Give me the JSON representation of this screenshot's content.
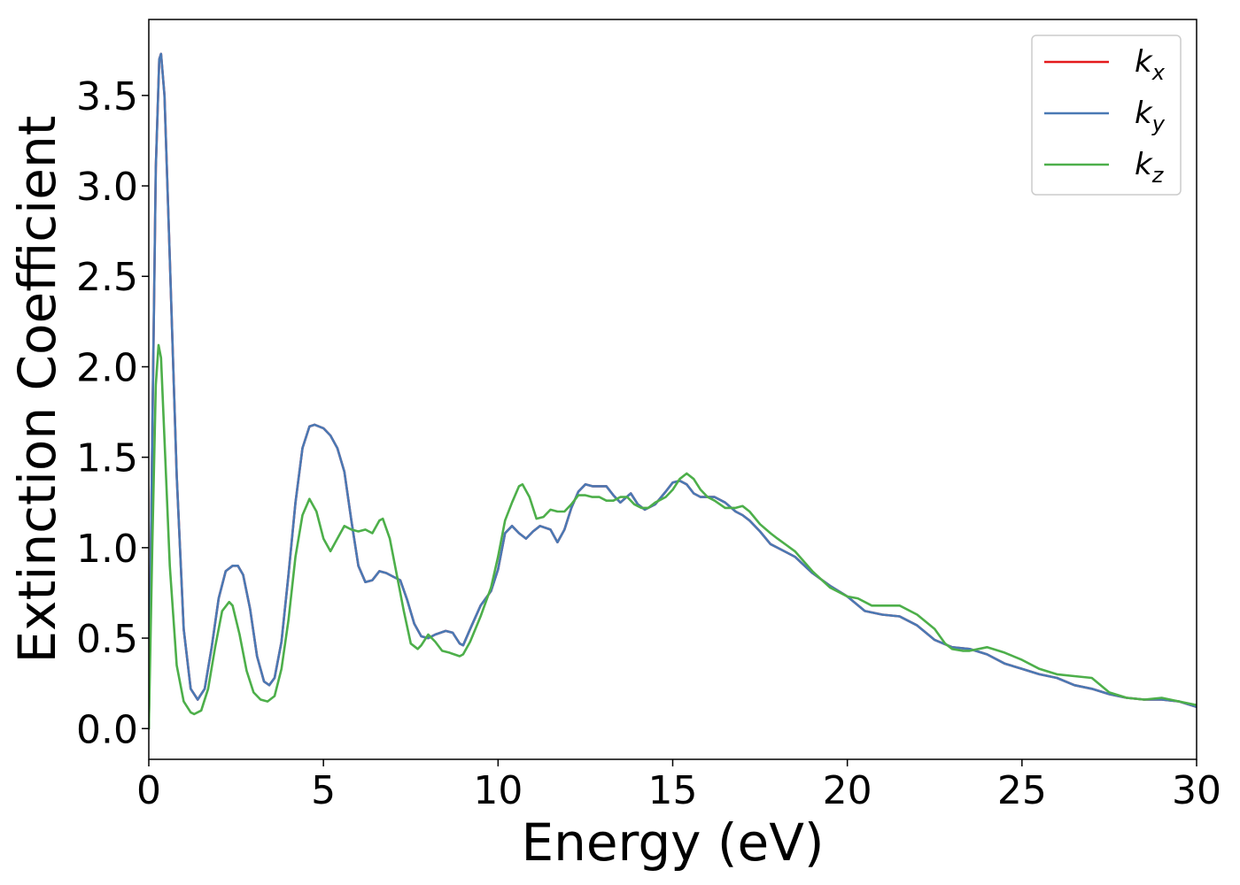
{
  "chart_data": {
    "type": "line",
    "title": "",
    "xlabel": "Energy (eV)",
    "ylabel": "Extinction Coefficient",
    "xlim": [
      0,
      30
    ],
    "ylim": [
      -0.17,
      3.92
    ],
    "xticks": [
      0,
      5,
      10,
      15,
      20,
      25,
      30
    ],
    "xtick_labels": [
      "0",
      "5",
      "10",
      "15",
      "20",
      "25",
      "30"
    ],
    "yticks": [
      0.0,
      0.5,
      1.0,
      1.5,
      2.0,
      2.5,
      3.0,
      3.5
    ],
    "ytick_labels": [
      "0.0",
      "0.5",
      "1.0",
      "1.5",
      "2.0",
      "2.5",
      "3.0",
      "3.5"
    ],
    "grid": false,
    "legend_position": "top-right",
    "series": [
      {
        "name": "k_x",
        "legend_main": "k",
        "legend_sub": "x",
        "color": "#e41a1c",
        "x": [
          0,
          0.1,
          0.2,
          0.3,
          0.35,
          0.45,
          0.6,
          0.8,
          1.0,
          1.2,
          1.4,
          1.6,
          1.8,
          2.0,
          2.2,
          2.4,
          2.55,
          2.7,
          2.9,
          3.1,
          3.3,
          3.45,
          3.6,
          3.8,
          4.0,
          4.2,
          4.4,
          4.6,
          4.75,
          5.0,
          5.2,
          5.4,
          5.6,
          5.8,
          6.0,
          6.2,
          6.4,
          6.6,
          6.8,
          7.0,
          7.2,
          7.4,
          7.6,
          7.8,
          8.0,
          8.2,
          8.5,
          8.7,
          8.9,
          9.0,
          9.2,
          9.5,
          9.8,
          10.0,
          10.2,
          10.4,
          10.6,
          10.8,
          11.0,
          11.2,
          11.5,
          11.7,
          11.9,
          12.1,
          12.3,
          12.5,
          12.7,
          12.9,
          13.1,
          13.3,
          13.5,
          13.8,
          14.0,
          14.2,
          14.5,
          14.8,
          15.0,
          15.2,
          15.4,
          15.6,
          15.8,
          16.0,
          16.2,
          16.5,
          16.8,
          17.0,
          17.2,
          17.5,
          17.8,
          18.0,
          18.5,
          19.0,
          19.5,
          20.0,
          20.5,
          21.0,
          21.5,
          22.0,
          22.5,
          23.0,
          23.5,
          24.0,
          24.5,
          25.0,
          25.5,
          26.0,
          26.5,
          27.0,
          27.5,
          28.0,
          28.5,
          29.0,
          29.5,
          30.0
        ],
        "y": [
          0.0,
          1.6,
          3.1,
          3.7,
          3.73,
          3.5,
          2.6,
          1.4,
          0.55,
          0.22,
          0.16,
          0.22,
          0.45,
          0.72,
          0.87,
          0.9,
          0.9,
          0.85,
          0.66,
          0.4,
          0.26,
          0.24,
          0.28,
          0.48,
          0.85,
          1.25,
          1.55,
          1.67,
          1.68,
          1.66,
          1.62,
          1.55,
          1.42,
          1.15,
          0.9,
          0.81,
          0.82,
          0.87,
          0.86,
          0.84,
          0.82,
          0.71,
          0.58,
          0.51,
          0.5,
          0.52,
          0.54,
          0.53,
          0.47,
          0.46,
          0.55,
          0.68,
          0.76,
          0.88,
          1.08,
          1.12,
          1.08,
          1.05,
          1.09,
          1.12,
          1.1,
          1.03,
          1.1,
          1.22,
          1.31,
          1.35,
          1.34,
          1.34,
          1.34,
          1.29,
          1.25,
          1.3,
          1.24,
          1.21,
          1.24,
          1.31,
          1.36,
          1.37,
          1.35,
          1.3,
          1.28,
          1.28,
          1.28,
          1.25,
          1.2,
          1.18,
          1.15,
          1.09,
          1.02,
          1.0,
          0.95,
          0.86,
          0.79,
          0.73,
          0.65,
          0.63,
          0.62,
          0.57,
          0.49,
          0.45,
          0.44,
          0.41,
          0.36,
          0.33,
          0.3,
          0.28,
          0.24,
          0.22,
          0.19,
          0.17,
          0.16,
          0.16,
          0.15,
          0.12
        ]
      },
      {
        "name": "k_y",
        "legend_main": "k",
        "legend_sub": "y",
        "color": "#4a79b4",
        "x": [
          0,
          0.1,
          0.2,
          0.3,
          0.35,
          0.45,
          0.6,
          0.8,
          1.0,
          1.2,
          1.4,
          1.6,
          1.8,
          2.0,
          2.2,
          2.4,
          2.55,
          2.7,
          2.9,
          3.1,
          3.3,
          3.45,
          3.6,
          3.8,
          4.0,
          4.2,
          4.4,
          4.6,
          4.75,
          5.0,
          5.2,
          5.4,
          5.6,
          5.8,
          6.0,
          6.2,
          6.4,
          6.6,
          6.8,
          7.0,
          7.2,
          7.4,
          7.6,
          7.8,
          8.0,
          8.2,
          8.5,
          8.7,
          8.9,
          9.0,
          9.2,
          9.5,
          9.8,
          10.0,
          10.2,
          10.4,
          10.6,
          10.8,
          11.0,
          11.2,
          11.5,
          11.7,
          11.9,
          12.1,
          12.3,
          12.5,
          12.7,
          12.9,
          13.1,
          13.3,
          13.5,
          13.8,
          14.0,
          14.2,
          14.5,
          14.8,
          15.0,
          15.2,
          15.4,
          15.6,
          15.8,
          16.0,
          16.2,
          16.5,
          16.8,
          17.0,
          17.2,
          17.5,
          17.8,
          18.0,
          18.5,
          19.0,
          19.5,
          20.0,
          20.5,
          21.0,
          21.5,
          22.0,
          22.5,
          23.0,
          23.5,
          24.0,
          24.5,
          25.0,
          25.5,
          26.0,
          26.5,
          27.0,
          27.5,
          28.0,
          28.5,
          29.0,
          29.5,
          30.0
        ],
        "y": [
          0.0,
          1.6,
          3.1,
          3.7,
          3.73,
          3.5,
          2.6,
          1.4,
          0.55,
          0.22,
          0.16,
          0.22,
          0.45,
          0.72,
          0.87,
          0.9,
          0.9,
          0.85,
          0.66,
          0.4,
          0.26,
          0.24,
          0.28,
          0.48,
          0.85,
          1.25,
          1.55,
          1.67,
          1.68,
          1.66,
          1.62,
          1.55,
          1.42,
          1.15,
          0.9,
          0.81,
          0.82,
          0.87,
          0.86,
          0.84,
          0.82,
          0.71,
          0.58,
          0.51,
          0.5,
          0.52,
          0.54,
          0.53,
          0.47,
          0.46,
          0.55,
          0.68,
          0.76,
          0.88,
          1.08,
          1.12,
          1.08,
          1.05,
          1.09,
          1.12,
          1.1,
          1.03,
          1.1,
          1.22,
          1.31,
          1.35,
          1.34,
          1.34,
          1.34,
          1.29,
          1.25,
          1.3,
          1.24,
          1.21,
          1.24,
          1.31,
          1.36,
          1.37,
          1.35,
          1.3,
          1.28,
          1.28,
          1.28,
          1.25,
          1.2,
          1.18,
          1.15,
          1.09,
          1.02,
          1.0,
          0.95,
          0.86,
          0.79,
          0.73,
          0.65,
          0.63,
          0.62,
          0.57,
          0.49,
          0.45,
          0.44,
          0.41,
          0.36,
          0.33,
          0.3,
          0.28,
          0.24,
          0.22,
          0.19,
          0.17,
          0.16,
          0.16,
          0.15,
          0.12
        ]
      },
      {
        "name": "k_z",
        "legend_main": "k",
        "legend_sub": "z",
        "color": "#4daf4a",
        "x": [
          0,
          0.1,
          0.2,
          0.28,
          0.35,
          0.45,
          0.6,
          0.8,
          1.0,
          1.2,
          1.3,
          1.5,
          1.7,
          1.9,
          2.1,
          2.3,
          2.4,
          2.6,
          2.8,
          3.0,
          3.2,
          3.4,
          3.6,
          3.8,
          4.0,
          4.2,
          4.4,
          4.6,
          4.8,
          5.0,
          5.2,
          5.4,
          5.6,
          5.8,
          6.0,
          6.2,
          6.4,
          6.6,
          6.7,
          6.9,
          7.1,
          7.3,
          7.5,
          7.7,
          7.8,
          8.0,
          8.2,
          8.4,
          8.6,
          8.9,
          9.0,
          9.2,
          9.5,
          9.8,
          10.0,
          10.2,
          10.4,
          10.6,
          10.7,
          10.9,
          11.1,
          11.3,
          11.5,
          11.7,
          11.9,
          12.1,
          12.3,
          12.5,
          12.7,
          12.9,
          13.1,
          13.3,
          13.5,
          13.7,
          13.9,
          14.1,
          14.3,
          14.5,
          14.8,
          15.0,
          15.2,
          15.4,
          15.6,
          15.8,
          16.0,
          16.2,
          16.5,
          16.8,
          17.0,
          17.2,
          17.5,
          17.8,
          18.0,
          18.5,
          19.0,
          19.5,
          20.0,
          20.3,
          20.7,
          21.0,
          21.5,
          22.0,
          22.5,
          22.8,
          23.0,
          23.3,
          23.5,
          24.0,
          24.5,
          25.0,
          25.5,
          26.0,
          26.5,
          27.0,
          27.5,
          28.0,
          28.5,
          29.0,
          29.5,
          30.0
        ],
        "y": [
          0.0,
          1.0,
          1.9,
          2.12,
          2.05,
          1.6,
          0.9,
          0.35,
          0.15,
          0.09,
          0.08,
          0.1,
          0.22,
          0.45,
          0.65,
          0.7,
          0.68,
          0.52,
          0.32,
          0.2,
          0.16,
          0.15,
          0.18,
          0.33,
          0.6,
          0.95,
          1.18,
          1.27,
          1.2,
          1.05,
          0.98,
          1.05,
          1.12,
          1.1,
          1.09,
          1.1,
          1.08,
          1.15,
          1.16,
          1.05,
          0.85,
          0.65,
          0.47,
          0.44,
          0.46,
          0.52,
          0.48,
          0.43,
          0.42,
          0.4,
          0.41,
          0.48,
          0.62,
          0.78,
          0.95,
          1.15,
          1.25,
          1.34,
          1.35,
          1.28,
          1.16,
          1.17,
          1.21,
          1.2,
          1.2,
          1.24,
          1.29,
          1.29,
          1.28,
          1.28,
          1.26,
          1.26,
          1.28,
          1.28,
          1.24,
          1.22,
          1.22,
          1.25,
          1.28,
          1.32,
          1.38,
          1.41,
          1.38,
          1.32,
          1.28,
          1.26,
          1.22,
          1.22,
          1.23,
          1.2,
          1.13,
          1.08,
          1.05,
          0.98,
          0.87,
          0.78,
          0.73,
          0.72,
          0.68,
          0.68,
          0.68,
          0.63,
          0.55,
          0.47,
          0.44,
          0.43,
          0.43,
          0.45,
          0.42,
          0.38,
          0.33,
          0.3,
          0.29,
          0.28,
          0.2,
          0.17,
          0.16,
          0.17,
          0.15,
          0.13
        ]
      }
    ]
  }
}
